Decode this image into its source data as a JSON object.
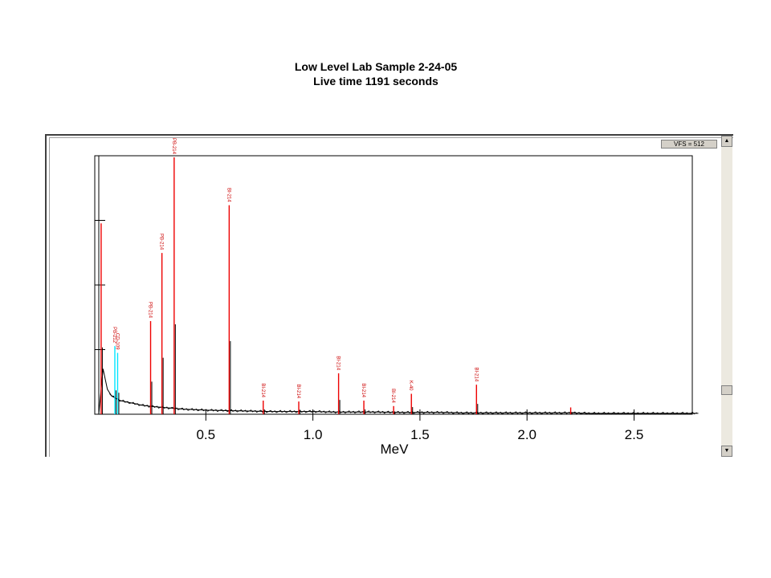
{
  "title_lines": [
    "Low Level Lab Sample  2-24-05",
    "Live time 1191 seconds"
  ],
  "vfs_label": "VFS = 512",
  "colors": {
    "spectrum": "#000000",
    "peak": "#ee0000",
    "highlight": "#00e5ff",
    "label": "#cc0000"
  },
  "chart_data": {
    "type": "line",
    "title": "Low Level Lab Sample  2-24-05",
    "subtitle": "Live time 1191 seconds",
    "xlabel": "MeV",
    "ylabel": "",
    "xlim": [
      0.0,
      2.8
    ],
    "ylim": [
      0,
      512
    ],
    "x_ticks": [
      "0.5",
      "1.0",
      "1.5",
      "2.0",
      "2.5"
    ],
    "grid": false,
    "series": [
      {
        "values_note": "",
        "x": [
          0.0,
          0.02,
          0.04,
          0.06,
          0.08,
          0.1,
          0.12,
          0.14,
          0.16,
          0.18,
          0.2,
          0.25,
          0.3,
          0.35,
          0.4,
          0.45,
          0.5,
          0.6,
          0.7,
          0.8,
          0.9,
          1.0,
          1.1,
          1.2,
          1.3,
          1.4,
          1.5,
          1.6,
          1.7,
          1.8,
          1.9,
          2.0,
          2.1,
          2.2,
          2.3,
          2.4,
          2.5,
          2.6,
          2.7,
          2.8
        ],
        "y": [
          0,
          100,
          55,
          40,
          35,
          30,
          28,
          26,
          24,
          22,
          20,
          17,
          15,
          13,
          11,
          10,
          9,
          8,
          7,
          6,
          6,
          6,
          5,
          5,
          5,
          4,
          4,
          4,
          3,
          3,
          3,
          3,
          3,
          3,
          2,
          2,
          2,
          2,
          2,
          2
        ]
      }
    ],
    "peaks": [
      {
        "x": 0.011,
        "y": 420,
        "color": "peak",
        "label": ""
      },
      {
        "x": 0.075,
        "y": 150,
        "color": "highlight",
        "label": "PB-212"
      },
      {
        "x": 0.088,
        "y": 135,
        "color": "highlight",
        "label": "CD-109"
      },
      {
        "x": 0.242,
        "y": 205,
        "color": "peak",
        "label": "PB-214"
      },
      {
        "x": 0.295,
        "y": 355,
        "color": "peak",
        "label": "PB-214"
      },
      {
        "x": 0.352,
        "y": 720,
        "color": "peak",
        "label": "PB-214"
      },
      {
        "x": 0.609,
        "y": 460,
        "color": "peak",
        "label": "BI-214"
      },
      {
        "x": 0.768,
        "y": 30,
        "color": "peak",
        "label": "BI-214"
      },
      {
        "x": 0.934,
        "y": 28,
        "color": "peak",
        "label": "BI-214"
      },
      {
        "x": 1.12,
        "y": 90,
        "color": "peak",
        "label": "BI-214"
      },
      {
        "x": 1.238,
        "y": 30,
        "color": "peak",
        "label": "BI-214"
      },
      {
        "x": 1.377,
        "y": 18,
        "color": "peak",
        "label": "BI-214"
      },
      {
        "x": 1.46,
        "y": 45,
        "color": "peak",
        "label": "K-40"
      },
      {
        "x": 1.764,
        "y": 65,
        "color": "peak",
        "label": "BI-214"
      },
      {
        "x": 2.204,
        "y": 15,
        "color": "peak",
        "label": ""
      }
    ]
  }
}
